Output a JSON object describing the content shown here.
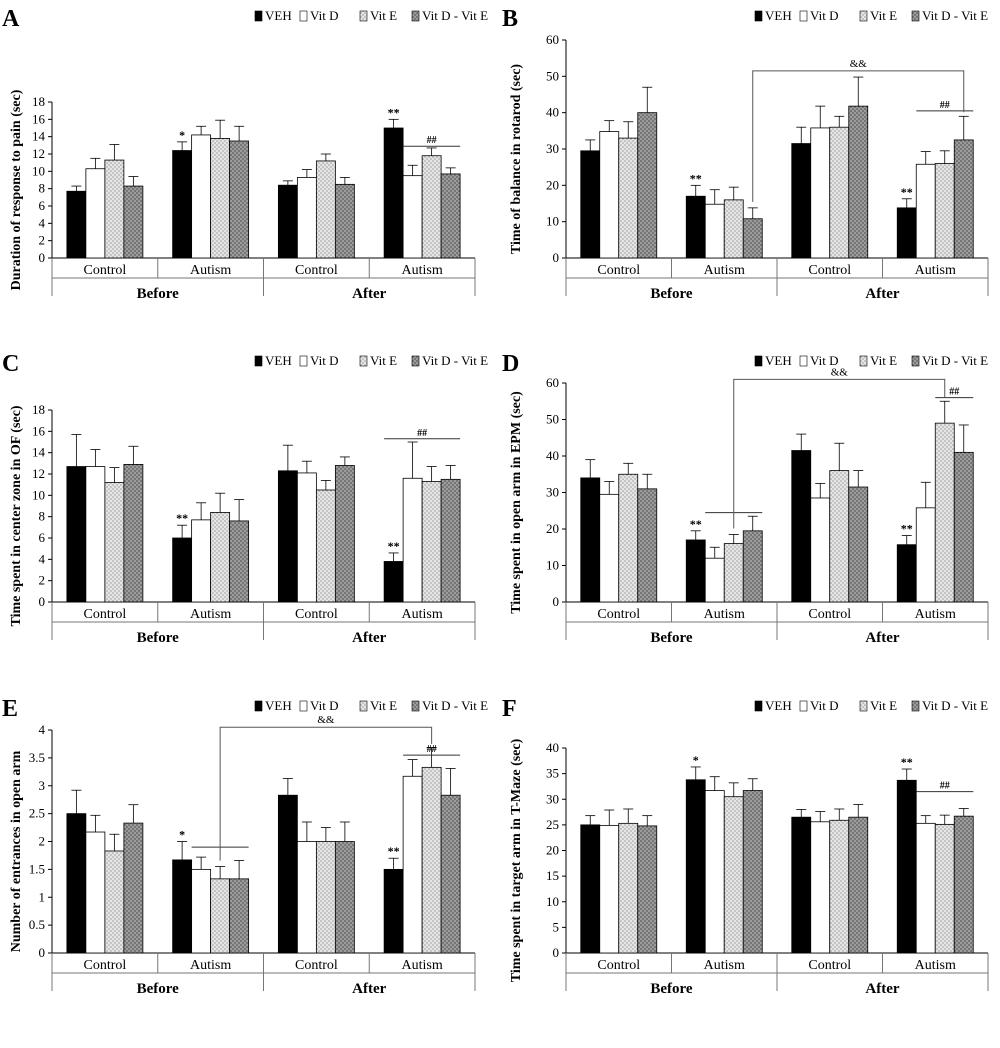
{
  "legend": [
    "VEH",
    "Vit D",
    "Vit E",
    "Vit D - Vit E"
  ],
  "chart_data": [
    {
      "type": "bar",
      "panel_letter": "A",
      "ylabel": "Duration of response to pain (sec)",
      "ylim": [
        0,
        18
      ],
      "yticks": [
        0,
        2,
        4,
        6,
        8,
        10,
        12,
        14,
        16,
        18
      ],
      "categories": [
        "Control",
        "Autism",
        "Control",
        "Autism"
      ],
      "groups": [
        "Before",
        "After"
      ],
      "series": [
        {
          "name": "VEH",
          "values": [
            7.7,
            12.4,
            8.4,
            15.0
          ],
          "errors": [
            0.6,
            1.0,
            0.5,
            1.0
          ]
        },
        {
          "name": "Vit D",
          "values": [
            10.3,
            14.2,
            9.3,
            9.5
          ],
          "errors": [
            1.2,
            1.0,
            0.9,
            1.2
          ]
        },
        {
          "name": "Vit E",
          "values": [
            11.3,
            13.8,
            11.2,
            11.8
          ],
          "errors": [
            1.8,
            2.1,
            0.8,
            0.9
          ]
        },
        {
          "name": "Vit D - Vit E",
          "values": [
            8.3,
            13.5,
            8.5,
            9.7
          ],
          "errors": [
            1.1,
            1.7,
            0.8,
            0.7
          ]
        }
      ],
      "sig_marks": [
        {
          "cat": 1,
          "series": 0,
          "text": "*"
        },
        {
          "cat": 3,
          "series": 0,
          "text": "**"
        }
      ],
      "brackets": [
        {
          "text": "##",
          "cat": 3,
          "from": 1,
          "to": 3,
          "y": 12.9
        }
      ],
      "long_bracket": null
    },
    {
      "type": "bar",
      "panel_letter": "B",
      "ylabel": "Time of balance in rotarod (sec)",
      "ylim": [
        0,
        60
      ],
      "yticks": [
        0,
        10,
        20,
        30,
        40,
        50,
        60
      ],
      "categories": [
        "Control",
        "Autism",
        "Control",
        "Autism"
      ],
      "groups": [
        "Before",
        "After"
      ],
      "series": [
        {
          "name": "VEH",
          "values": [
            29.5,
            17.0,
            31.5,
            13.8
          ],
          "errors": [
            3.0,
            3.0,
            4.5,
            2.5
          ]
        },
        {
          "name": "Vit D",
          "values": [
            34.8,
            14.8,
            35.8,
            25.8
          ],
          "errors": [
            3.0,
            4.0,
            6.0,
            3.5
          ]
        },
        {
          "name": "Vit E",
          "values": [
            33.0,
            16.0,
            36.0,
            26.0
          ],
          "errors": [
            4.5,
            3.5,
            3.0,
            3.5
          ]
        },
        {
          "name": "Vit D - Vit E",
          "values": [
            40.0,
            10.8,
            41.8,
            32.5
          ],
          "errors": [
            7.0,
            3.0,
            8.0,
            6.5
          ]
        }
      ],
      "sig_marks": [
        {
          "cat": 1,
          "series": 0,
          "text": "**"
        },
        {
          "cat": 3,
          "series": 0,
          "text": "**"
        }
      ],
      "brackets": [
        {
          "text": "##",
          "cat": 3,
          "from": 1,
          "to": 3,
          "y": 40.5
        }
      ],
      "long_bracket": {
        "text": "&&",
        "fromCat": 1,
        "fromSeries": 3,
        "toCat": 3,
        "toSeries": 3,
        "y": 51.5
      }
    },
    {
      "type": "bar",
      "panel_letter": "C",
      "ylabel": "Time spent in center zone in OF (sec)",
      "ylim": [
        0,
        18
      ],
      "yticks": [
        0,
        2,
        4,
        6,
        8,
        10,
        12,
        14,
        16,
        18
      ],
      "categories": [
        "Control",
        "Autism",
        "Control",
        "Autism"
      ],
      "groups": [
        "Before",
        "After"
      ],
      "series": [
        {
          "name": "VEH",
          "values": [
            12.7,
            6.0,
            12.3,
            3.8
          ],
          "errors": [
            3.0,
            1.2,
            2.4,
            0.8
          ]
        },
        {
          "name": "Vit D",
          "values": [
            12.7,
            7.7,
            12.1,
            11.6
          ],
          "errors": [
            1.6,
            1.6,
            1.1,
            3.4
          ]
        },
        {
          "name": "Vit E",
          "values": [
            11.2,
            8.4,
            10.5,
            11.3
          ],
          "errors": [
            1.4,
            1.8,
            0.9,
            1.4
          ]
        },
        {
          "name": "Vit D - Vit E",
          "values": [
            12.9,
            7.6,
            12.8,
            11.5
          ],
          "errors": [
            1.7,
            2.0,
            0.8,
            1.3
          ]
        }
      ],
      "sig_marks": [
        {
          "cat": 1,
          "series": 0,
          "text": "**"
        },
        {
          "cat": 3,
          "series": 0,
          "text": "**"
        }
      ],
      "brackets": [
        {
          "text": "##",
          "cat": 3,
          "from": 0,
          "to": 3,
          "y": 15.3
        }
      ],
      "long_bracket": null
    },
    {
      "type": "bar",
      "panel_letter": "D",
      "ylabel": "Time spent in open arm in EPM (sec)",
      "ylim": [
        0,
        60
      ],
      "yticks": [
        0,
        10,
        20,
        30,
        40,
        50,
        60
      ],
      "categories": [
        "Control",
        "Autism",
        "Control",
        "Autism"
      ],
      "groups": [
        "Before",
        "After"
      ],
      "series": [
        {
          "name": "VEH",
          "values": [
            34.0,
            17.0,
            41.5,
            15.7
          ],
          "errors": [
            5.0,
            2.5,
            4.5,
            2.5
          ]
        },
        {
          "name": "Vit D",
          "values": [
            29.5,
            12.0,
            28.5,
            25.8
          ],
          "errors": [
            3.5,
            3.0,
            4.0,
            7.0
          ]
        },
        {
          "name": "Vit E",
          "values": [
            35.0,
            16.0,
            36.0,
            49.0
          ],
          "errors": [
            3.0,
            2.5,
            7.5,
            6.0
          ]
        },
        {
          "name": "Vit D - Vit E",
          "values": [
            31.0,
            19.5,
            31.5,
            41.0
          ],
          "errors": [
            4.0,
            4.0,
            4.5,
            7.5
          ]
        }
      ],
      "sig_marks": [
        {
          "cat": 1,
          "series": 0,
          "text": "**"
        },
        {
          "cat": 3,
          "series": 0,
          "text": "**"
        }
      ],
      "brackets": [
        {
          "text": "##",
          "cat": 3,
          "from": 2,
          "to": 3,
          "y": 56
        },
        {
          "text": "",
          "cat": 1,
          "from": 1,
          "to": 3,
          "y": 24.5
        }
      ],
      "long_bracket": {
        "text": "&&",
        "fromCat": 1,
        "fromSeries": 2,
        "toCat": 3,
        "toSeries": 2,
        "y": 61
      }
    },
    {
      "type": "bar",
      "panel_letter": "E",
      "ylabel": "Number of entrances in open arm",
      "ylim": [
        0,
        4
      ],
      "yticks": [
        0,
        0.5,
        1,
        1.5,
        2,
        2.5,
        3,
        3.5,
        4
      ],
      "categories": [
        "Control",
        "Autism",
        "Control",
        "Autism"
      ],
      "groups": [
        "Before",
        "After"
      ],
      "series": [
        {
          "name": "VEH",
          "values": [
            2.5,
            1.67,
            2.83,
            1.5
          ],
          "errors": [
            0.42,
            0.33,
            0.3,
            0.2
          ]
        },
        {
          "name": "Vit D",
          "values": [
            2.17,
            1.5,
            2.0,
            3.17
          ],
          "errors": [
            0.3,
            0.22,
            0.35,
            0.3
          ]
        },
        {
          "name": "Vit E",
          "values": [
            1.83,
            1.33,
            2.0,
            3.33
          ],
          "errors": [
            0.3,
            0.22,
            0.25,
            0.35
          ]
        },
        {
          "name": "Vit D - Vit E",
          "values": [
            2.33,
            1.33,
            2.0,
            2.83
          ],
          "errors": [
            0.33,
            0.33,
            0.35,
            0.48
          ]
        }
      ],
      "sig_marks": [
        {
          "cat": 1,
          "series": 0,
          "text": "*"
        },
        {
          "cat": 3,
          "series": 0,
          "text": "**"
        }
      ],
      "brackets": [
        {
          "text": "##",
          "cat": 3,
          "from": 1,
          "to": 3,
          "y": 3.55
        },
        {
          "text": "",
          "cat": 1,
          "from": 1,
          "to": 3,
          "y": 1.9
        }
      ],
      "long_bracket": {
        "text": "&&",
        "fromCat": 1,
        "fromSeries": 2,
        "toCat": 3,
        "toSeries": 2,
        "y": 4.05
      }
    },
    {
      "type": "bar",
      "panel_letter": "F",
      "ylabel": "Time spent in target arm in T-Maze (sec)",
      "ylim": [
        0,
        40
      ],
      "yticks": [
        0,
        5,
        10,
        15,
        20,
        25,
        30,
        35,
        40
      ],
      "categories": [
        "Control",
        "Autism",
        "Control",
        "Autism"
      ],
      "groups": [
        "Before",
        "After"
      ],
      "series": [
        {
          "name": "VEH",
          "values": [
            25.0,
            33.8,
            26.5,
            33.7
          ],
          "errors": [
            1.8,
            2.5,
            1.5,
            2.2
          ]
        },
        {
          "name": "Vit D",
          "values": [
            24.9,
            31.7,
            25.6,
            25.3
          ],
          "errors": [
            3.0,
            2.7,
            2.0,
            1.5
          ]
        },
        {
          "name": "Vit E",
          "values": [
            25.3,
            30.5,
            25.9,
            25.1
          ],
          "errors": [
            2.8,
            2.7,
            2.2,
            1.8
          ]
        },
        {
          "name": "Vit D - Vit E",
          "values": [
            24.8,
            31.7,
            26.5,
            26.7
          ],
          "errors": [
            2.0,
            2.3,
            2.5,
            1.5
          ]
        }
      ],
      "sig_marks": [
        {
          "cat": 1,
          "series": 0,
          "text": "*"
        },
        {
          "cat": 3,
          "series": 0,
          "text": "**"
        }
      ],
      "brackets": [
        {
          "text": "##",
          "cat": 3,
          "from": 1,
          "to": 3,
          "y": 31.5
        }
      ],
      "long_bracket": null
    }
  ]
}
